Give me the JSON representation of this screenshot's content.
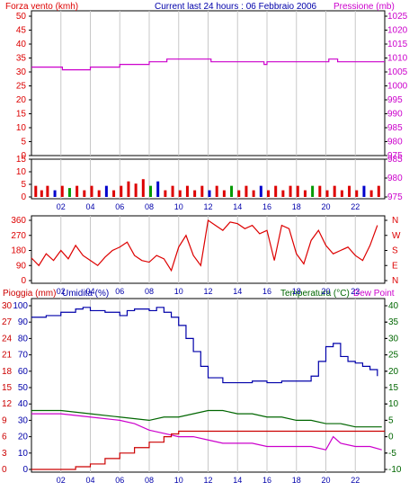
{
  "header": {
    "left_label": "Forza vento (kmh)",
    "center_title": "Current last 24 hours : 06 Febbraio 2006",
    "right_label": "Pressione (mb)"
  },
  "colors": {
    "wind": "#dd0000",
    "wind_gust_blue": "#0000cc",
    "wind_gust_green": "#009900",
    "pressure": "#cc00cc",
    "direction": "#dd0000",
    "humidity": "#0000aa",
    "temperature": "#006600",
    "dewpoint": "#cc00cc",
    "rain": "#cc0000",
    "grid": "#c8c8c8",
    "frame": "#000000"
  },
  "time_axis": {
    "tick_labels": [
      "02",
      "04",
      "06",
      "08",
      "10",
      "12",
      "14",
      "16",
      "18",
      "20",
      "22"
    ],
    "tick_hours": [
      2,
      4,
      6,
      8,
      10,
      12,
      14,
      16,
      18,
      20,
      22
    ],
    "hour_range": [
      0,
      24
    ]
  },
  "panels": {
    "pressure": {
      "left_axis_label": "Forza vento (kmh)",
      "right_axis_label": "Pressione (mb)",
      "left_ticks": [
        "50",
        "45",
        "40",
        "35",
        "30",
        "25",
        "20",
        "15",
        "10",
        "5",
        "0"
      ],
      "right_ticks": [
        "1025",
        "1020",
        "1015",
        "1010",
        "1005",
        "1000",
        "995",
        "990",
        "985",
        "980",
        "975"
      ]
    },
    "wind": {
      "left_ticks": [
        "15",
        "10",
        "5",
        "0"
      ],
      "right_ticks": [
        "985",
        "980",
        "975"
      ]
    },
    "direction": {
      "left_ticks": [
        "360",
        "270",
        "180",
        "90",
        "0"
      ],
      "right_ticks": [
        "N",
        "W",
        "S",
        "E",
        "N"
      ]
    },
    "bottom": {
      "rain_label": "Pioggia (mm)",
      "humidity_label": "Umidita (%)",
      "temperature_label": "Temperatura (°C)",
      "dewpoint_label": "Dew Point",
      "humidity_ticks": [
        "100",
        "90",
        "80",
        "70",
        "60",
        "50",
        "40",
        "30",
        "20",
        "10",
        "0"
      ],
      "rain_ticks": [
        "30",
        "27",
        "24",
        "21",
        "18",
        "15",
        "12",
        "9",
        "6",
        "3",
        "0"
      ],
      "temp_ticks": [
        "40",
        "35",
        "30",
        "25",
        "20",
        "15",
        "10",
        "5",
        "0",
        "-5",
        "-10"
      ]
    }
  },
  "chart_data": [
    {
      "type": "line",
      "name": "Pressione (mb)",
      "ylim": [
        975,
        1027
      ],
      "x": [
        0,
        2.0,
        2.1,
        3.9,
        4.0,
        5.8,
        6.0,
        7.8,
        8.0,
        9.0,
        9.2,
        10.0,
        12.0,
        12.2,
        15.6,
        15.8,
        16.0,
        20.0,
        20.2,
        20.6,
        20.8,
        21.2,
        21.4,
        24
      ],
      "y": [
        1008,
        1008,
        1007,
        1007,
        1008,
        1008,
        1009,
        1009,
        1010,
        1010,
        1011,
        1011,
        1011,
        1010,
        1010,
        1009,
        1010,
        1010,
        1011,
        1011,
        1010,
        1010,
        1010,
        1010
      ]
    },
    {
      "type": "bar",
      "name": "Forza vento (kmh)",
      "ylim": [
        0,
        17
      ],
      "x": [
        0.2,
        0.6,
        1.0,
        1.5,
        2.0,
        2.5,
        3.0,
        3.5,
        4.0,
        4.5,
        5.0,
        5.5,
        6.0,
        6.5,
        7.0,
        7.5,
        8.0,
        8.5,
        9.0,
        9.5,
        10.0,
        10.5,
        11.0,
        11.5,
        12.0,
        12.5,
        13.0,
        13.5,
        14.0,
        14.5,
        15.0,
        15.5,
        16.0,
        16.5,
        17.0,
        17.5,
        18.0,
        18.5,
        19.0,
        19.5,
        20.0,
        20.5,
        21.0,
        21.5,
        22.0,
        22.5,
        23.0,
        23.5
      ],
      "y": [
        5,
        3,
        5,
        3,
        5,
        4,
        5,
        3,
        5,
        3,
        5,
        3,
        5,
        7,
        6,
        8,
        5,
        7,
        3,
        5,
        3,
        5,
        3,
        5,
        3,
        5,
        3,
        5,
        3,
        5,
        3,
        5,
        3,
        5,
        3,
        5,
        5,
        3,
        5,
        5,
        3,
        5,
        3,
        5,
        3,
        5,
        3,
        5
      ]
    },
    {
      "type": "scatter",
      "name": "Direzione vento",
      "ylim": [
        0,
        360
      ],
      "x": [
        0.0,
        0.5,
        1.0,
        1.5,
        2.0,
        2.5,
        3.0,
        3.5,
        4.0,
        4.5,
        5.0,
        5.5,
        6.0,
        6.5,
        7.0,
        7.5,
        8.0,
        8.5,
        9.0,
        9.5,
        10.0,
        10.5,
        11.0,
        11.5,
        12.0,
        12.5,
        13.0,
        13.5,
        14.0,
        14.5,
        15.0,
        15.5,
        16.0,
        16.5,
        17.0,
        17.5,
        18.0,
        18.5,
        19.0,
        19.5,
        20.0,
        20.5,
        21.0,
        21.5,
        22.0,
        22.5,
        23.0,
        23.5
      ],
      "y": [
        135,
        90,
        160,
        120,
        180,
        130,
        210,
        150,
        120,
        90,
        140,
        180,
        200,
        230,
        150,
        120,
        110,
        150,
        130,
        60,
        200,
        270,
        150,
        90,
        360,
        330,
        300,
        350,
        340,
        310,
        330,
        280,
        300,
        120,
        330,
        310,
        160,
        100,
        240,
        300,
        210,
        160,
        180,
        200,
        150,
        120,
        210,
        330
      ]
    },
    {
      "type": "line",
      "name": "Umidita (%)",
      "ylim": [
        0,
        100
      ],
      "x": [
        0.0,
        1.0,
        2.0,
        3.0,
        3.5,
        4.0,
        5.0,
        6.0,
        6.5,
        7.0,
        8.0,
        8.5,
        9.0,
        9.5,
        10.0,
        10.5,
        11.0,
        11.5,
        12.0,
        13.0,
        14.0,
        15.0,
        16.0,
        17.0,
        18.0,
        19.0,
        19.5,
        20.0,
        20.5,
        21.0,
        21.5,
        22.0,
        22.5,
        23.0,
        23.5
      ],
      "y": [
        93,
        94,
        96,
        98,
        99,
        97,
        96,
        94,
        97,
        98,
        97,
        99,
        96,
        93,
        88,
        80,
        72,
        63,
        56,
        53,
        53,
        54,
        53,
        54,
        54,
        57,
        66,
        75,
        77,
        69,
        66,
        65,
        63,
        61,
        57
      ]
    },
    {
      "type": "line",
      "name": "Temperatura (°C)",
      "ylim": [
        -10,
        40
      ],
      "x": [
        0,
        2,
        4,
        6,
        8,
        9,
        10,
        11,
        12,
        13,
        14,
        15,
        16,
        17,
        18,
        19,
        20,
        21,
        22,
        23,
        23.8
      ],
      "y": [
        8,
        8,
        7,
        6,
        5,
        6,
        6,
        7,
        8,
        8,
        7,
        7,
        6,
        6,
        5,
        5,
        4,
        4,
        3,
        3,
        3
      ]
    },
    {
      "type": "line",
      "name": "Dew Point",
      "ylim": [
        -10,
        40
      ],
      "x": [
        0,
        2,
        4,
        6,
        7,
        8,
        9,
        10,
        11,
        12,
        13,
        14,
        15,
        16,
        17,
        18,
        19,
        20,
        20.5,
        21,
        22,
        23,
        23.8
      ],
      "y": [
        7,
        7,
        6,
        5,
        4,
        2,
        1,
        0,
        0,
        -1,
        -2,
        -2,
        -2,
        -3,
        -3,
        -3,
        -3,
        -4,
        0,
        -2,
        -3,
        -3,
        -4
      ]
    },
    {
      "type": "area",
      "name": "Pioggia (mm)",
      "ylim": [
        0,
        30
      ],
      "x": [
        0,
        2,
        3,
        4,
        5,
        6,
        7,
        8,
        9,
        9.5,
        10,
        11,
        12,
        24
      ],
      "y": [
        0,
        0,
        0.5,
        1,
        2,
        3,
        4,
        5,
        6,
        6.5,
        7,
        7,
        7,
        7
      ]
    }
  ]
}
